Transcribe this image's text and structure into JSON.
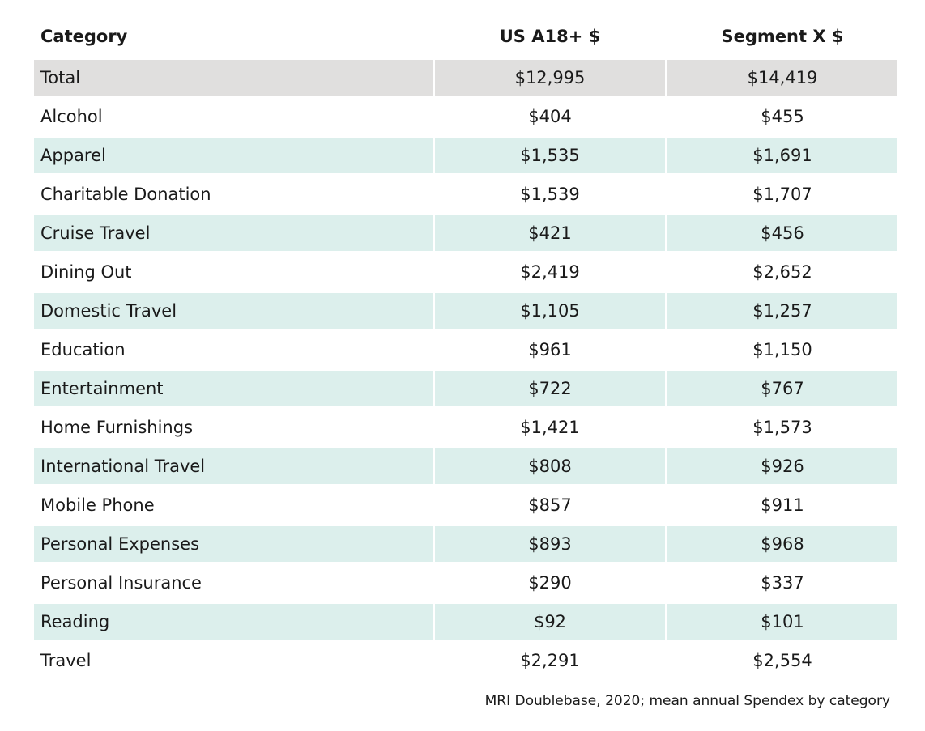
{
  "chart_data": {
    "type": "table",
    "columns": [
      "Category",
      "US A18+ $",
      "Segment X $"
    ],
    "rows": [
      {
        "category": "Total",
        "us": "$12,995",
        "seg": "$14,419"
      },
      {
        "category": "Alcohol",
        "us": "$404",
        "seg": "$455"
      },
      {
        "category": "Apparel",
        "us": "$1,535",
        "seg": "$1,691"
      },
      {
        "category": "Charitable Donation",
        "us": "$1,539",
        "seg": "$1,707"
      },
      {
        "category": "Cruise Travel",
        "us": "$421",
        "seg": "$456"
      },
      {
        "category": "Dining Out",
        "us": "$2,419",
        "seg": "$2,652"
      },
      {
        "category": "Domestic Travel",
        "us": "$1,105",
        "seg": "$1,257"
      },
      {
        "category": "Education",
        "us": "$961",
        "seg": "$1,150"
      },
      {
        "category": "Entertainment",
        "us": "$722",
        "seg": "$767"
      },
      {
        "category": "Home Furnishings",
        "us": "$1,421",
        "seg": "$1,573"
      },
      {
        "category": "International Travel",
        "us": "$808",
        "seg": "$926"
      },
      {
        "category": "Mobile Phone",
        "us": "$857",
        "seg": "$911"
      },
      {
        "category": "Personal Expenses",
        "us": "$893",
        "seg": "$968"
      },
      {
        "category": "Personal Insurance",
        "us": "$290",
        "seg": "$337"
      },
      {
        "category": "Reading",
        "us": "$92",
        "seg": "$101"
      },
      {
        "category": "Travel",
        "us": "$2,291",
        "seg": "$2,554"
      }
    ],
    "source_note": "MRI Doublebase, 2020; mean annual Spendex by category"
  },
  "colors": {
    "total_row_bg": "#e0dfde",
    "striped_row_bg": "#dcefec",
    "text": "#1a1a1a"
  }
}
